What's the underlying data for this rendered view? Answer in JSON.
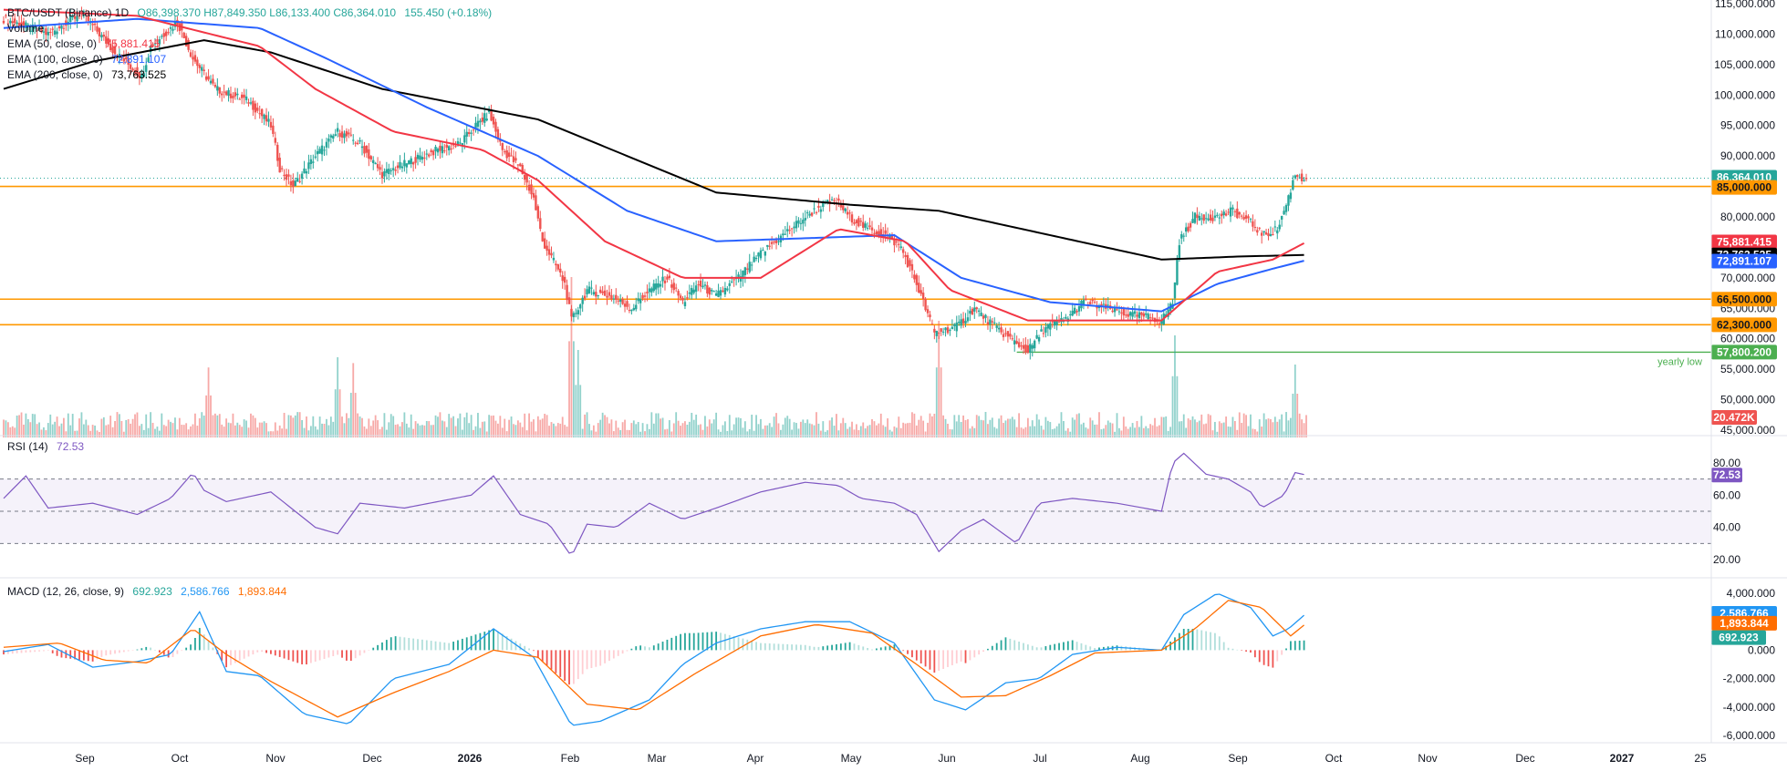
{
  "header": {
    "symbol_line": "BTC/USDT (Binance) 1D",
    "ohlc_text": "O86,398.370 H87,849.350 L86,133.400 C86,364.010",
    "change_text": "155.450 (+0.18%)",
    "volume_label": "Volume",
    "ema50_label": "EMA (50, close, 0)",
    "ema50_value": "75,881.415",
    "ema100_label": "EMA (100, close, 0)",
    "ema100_value": "72,891.107",
    "ema200_label": "EMA (200, close, 0)",
    "ema200_value": "73,763.525"
  },
  "rsi_pane": {
    "label": "RSI (14)",
    "value": "72.53"
  },
  "macd_pane": {
    "label": "MACD (12, 26, close, 9)",
    "histogram": "692.923",
    "macd": "2,586.766",
    "signal": "1,893.844"
  },
  "colors": {
    "up": "#26a69a",
    "down": "#ef5350",
    "ema50": "#f23645",
    "ema100": "#2962ff",
    "ema200": "#000000",
    "level": "#ff9800",
    "yearly_low": "#4caf50",
    "rsi": "#7e57c2",
    "macd": "#2196f3",
    "signal": "#ff6d00"
  },
  "chart_data": [
    {
      "type": "candlestick",
      "title": "BTC/USDT (Binance) 1D",
      "x_ticks": [
        "Sep",
        "Oct",
        "Nov",
        "Dec",
        "2026",
        "Feb",
        "Mar",
        "Apr",
        "May",
        "Jun",
        "Jul",
        "Aug",
        "Sep",
        "Oct",
        "Nov",
        "Dec",
        "2027",
        "25"
      ],
      "y_ticks": [
        "115,000.000",
        "110,000.000",
        "105,000.000",
        "100,000.000",
        "95,000.000",
        "90,000.000",
        "85,000.000",
        "80,000.000",
        "75,000.000",
        "70,000.000",
        "65,000.000",
        "60,000.000",
        "55,000.000",
        "50,000.000",
        "45,000.000"
      ],
      "ylim": [
        45000,
        115000
      ],
      "last_price": 86364.01,
      "last_price_label": "86,364.010",
      "path_points": [
        [
          0,
          112500
        ],
        [
          20,
          110000
        ],
        [
          35,
          113500
        ],
        [
          50,
          107000
        ],
        [
          62,
          103000
        ],
        [
          66,
          108000
        ],
        [
          78,
          112000
        ],
        [
          85,
          106000
        ],
        [
          95,
          101000
        ],
        [
          110,
          99000
        ],
        [
          120,
          95000
        ],
        [
          124,
          88000
        ],
        [
          130,
          85000
        ],
        [
          140,
          90000
        ],
        [
          150,
          94000
        ],
        [
          160,
          92000
        ],
        [
          170,
          87000
        ],
        [
          182,
          89000
        ],
        [
          195,
          91000
        ],
        [
          205,
          92000
        ],
        [
          212,
          95000
        ],
        [
          218,
          97000
        ],
        [
          224,
          91000
        ],
        [
          232,
          88000
        ],
        [
          238,
          83000
        ],
        [
          242,
          76000
        ],
        [
          248,
          72000
        ],
        [
          252,
          69000
        ],
        [
          255,
          63000
        ],
        [
          262,
          68000
        ],
        [
          272,
          67000
        ],
        [
          282,
          65000
        ],
        [
          290,
          68000
        ],
        [
          298,
          70000
        ],
        [
          305,
          66000
        ],
        [
          312,
          69000
        ],
        [
          320,
          67000
        ],
        [
          330,
          70000
        ],
        [
          340,
          74000
        ],
        [
          350,
          77000
        ],
        [
          360,
          80000
        ],
        [
          368,
          82000
        ],
        [
          374,
          82500
        ],
        [
          380,
          80000
        ],
        [
          388,
          78000
        ],
        [
          396,
          77000
        ],
        [
          403,
          75000
        ],
        [
          410,
          69000
        ],
        [
          418,
          61000
        ],
        [
          428,
          62000
        ],
        [
          436,
          65000
        ],
        [
          445,
          62000
        ],
        [
          452,
          60000
        ],
        [
          460,
          58000
        ],
        [
          468,
          62000
        ],
        [
          476,
          63000
        ],
        [
          485,
          66000
        ],
        [
          495,
          65000
        ],
        [
          505,
          64000
        ],
        [
          515,
          63500
        ],
        [
          520,
          63000
        ],
        [
          525,
          66000
        ],
        [
          528,
          76000
        ],
        [
          535,
          80000
        ],
        [
          545,
          80000
        ],
        [
          552,
          81000
        ],
        [
          560,
          79000
        ],
        [
          566,
          77000
        ],
        [
          572,
          78000
        ],
        [
          576,
          82000
        ],
        [
          580,
          87000
        ],
        [
          583,
          86364
        ]
      ],
      "ema50_points": [
        [
          0,
          114000
        ],
        [
          60,
          113000
        ],
        [
          115,
          108000
        ],
        [
          140,
          101000
        ],
        [
          175,
          94000
        ],
        [
          215,
          91000
        ],
        [
          240,
          86000
        ],
        [
          270,
          76000
        ],
        [
          305,
          70000
        ],
        [
          340,
          70000
        ],
        [
          375,
          78000
        ],
        [
          405,
          76000
        ],
        [
          425,
          68000
        ],
        [
          460,
          63000
        ],
        [
          520,
          63000
        ],
        [
          545,
          71000
        ],
        [
          570,
          73000
        ],
        [
          585,
          75881
        ]
      ],
      "ema100_points": [
        [
          0,
          111000
        ],
        [
          60,
          112500
        ],
        [
          115,
          111000
        ],
        [
          145,
          106000
        ],
        [
          190,
          98000
        ],
        [
          240,
          90000
        ],
        [
          280,
          81000
        ],
        [
          320,
          76000
        ],
        [
          360,
          76500
        ],
        [
          400,
          77000
        ],
        [
          430,
          70000
        ],
        [
          470,
          66000
        ],
        [
          520,
          64500
        ],
        [
          545,
          69000
        ],
        [
          570,
          71500
        ],
        [
          585,
          72891
        ]
      ],
      "ema200_points": [
        [
          0,
          101000
        ],
        [
          40,
          105500
        ],
        [
          90,
          109000
        ],
        [
          120,
          107000
        ],
        [
          170,
          101000
        ],
        [
          240,
          96000
        ],
        [
          320,
          84000
        ],
        [
          380,
          82000
        ],
        [
          420,
          81000
        ],
        [
          470,
          77000
        ],
        [
          520,
          73000
        ],
        [
          555,
          73500
        ],
        [
          585,
          73763
        ]
      ],
      "levels": [
        {
          "price": 85000,
          "label": "85,000.000"
        },
        {
          "price": 66500,
          "label": "66,500.000"
        },
        {
          "price": 62300,
          "label": "62,300.000"
        }
      ],
      "yearly_low": {
        "price": 57800.2,
        "label": "57,800.200",
        "text": "yearly low",
        "from_day": 455
      },
      "volume_label": "20.472K",
      "volume_spikes": [
        [
          92,
          4.8
        ],
        [
          150,
          5.5
        ],
        [
          157,
          5.1
        ],
        [
          255,
          11
        ],
        [
          258,
          6
        ],
        [
          420,
          8
        ],
        [
          526,
          7
        ],
        [
          580,
          5
        ]
      ]
    },
    {
      "type": "line",
      "title": "RSI (14)",
      "y_ticks": [
        "80.00",
        "60.00",
        "40.00",
        "20.00"
      ],
      "ylim": [
        10,
        90
      ],
      "bands": [
        70,
        50,
        30
      ],
      "value_label": "72.53",
      "points": [
        [
          0,
          58
        ],
        [
          10,
          72
        ],
        [
          20,
          52
        ],
        [
          40,
          55
        ],
        [
          60,
          48
        ],
        [
          75,
          58
        ],
        [
          85,
          74
        ],
        [
          90,
          63
        ],
        [
          100,
          56
        ],
        [
          120,
          62
        ],
        [
          140,
          40
        ],
        [
          150,
          36
        ],
        [
          160,
          55
        ],
        [
          180,
          52
        ],
        [
          210,
          60
        ],
        [
          220,
          72
        ],
        [
          232,
          48
        ],
        [
          245,
          42
        ],
        [
          255,
          22
        ],
        [
          262,
          42
        ],
        [
          275,
          40
        ],
        [
          290,
          55
        ],
        [
          305,
          45
        ],
        [
          320,
          52
        ],
        [
          340,
          62
        ],
        [
          360,
          68
        ],
        [
          375,
          66
        ],
        [
          385,
          58
        ],
        [
          400,
          55
        ],
        [
          410,
          48
        ],
        [
          420,
          25
        ],
        [
          430,
          38
        ],
        [
          440,
          45
        ],
        [
          455,
          30
        ],
        [
          465,
          55
        ],
        [
          480,
          58
        ],
        [
          500,
          55
        ],
        [
          520,
          50
        ],
        [
          525,
          80
        ],
        [
          530,
          86
        ],
        [
          540,
          73
        ],
        [
          550,
          70
        ],
        [
          560,
          62
        ],
        [
          565,
          52
        ],
        [
          575,
          60
        ],
        [
          580,
          74
        ],
        [
          585,
          72.53
        ]
      ]
    },
    {
      "type": "line",
      "title": "MACD (12, 26, close, 9)",
      "y_ticks": [
        "4,000.000",
        "2,000.000",
        "0.000",
        "-2,000.000",
        "-4,000.000",
        "-6,000.000"
      ],
      "ylim": [
        -6500,
        4500
      ],
      "macd_points": [
        [
          0,
          -100
        ],
        [
          20,
          400
        ],
        [
          40,
          -1200
        ],
        [
          60,
          -800
        ],
        [
          75,
          -300
        ],
        [
          88,
          2700
        ],
        [
          100,
          -1500
        ],
        [
          115,
          -1800
        ],
        [
          135,
          -4500
        ],
        [
          155,
          -5200
        ],
        [
          175,
          -2000
        ],
        [
          200,
          -1000
        ],
        [
          220,
          1500
        ],
        [
          238,
          -500
        ],
        [
          255,
          -5300
        ],
        [
          268,
          -5000
        ],
        [
          290,
          -3500
        ],
        [
          305,
          -1000
        ],
        [
          320,
          500
        ],
        [
          340,
          1500
        ],
        [
          360,
          2000
        ],
        [
          380,
          2000
        ],
        [
          400,
          500
        ],
        [
          418,
          -3500
        ],
        [
          432,
          -4200
        ],
        [
          450,
          -2300
        ],
        [
          465,
          -2000
        ],
        [
          480,
          -300
        ],
        [
          500,
          200
        ],
        [
          520,
          0
        ],
        [
          530,
          2500
        ],
        [
          545,
          4000
        ],
        [
          560,
          3000
        ],
        [
          570,
          1000
        ],
        [
          577,
          1500
        ],
        [
          585,
          2586.766
        ]
      ],
      "signal_points": [
        [
          0,
          200
        ],
        [
          25,
          500
        ],
        [
          45,
          -700
        ],
        [
          65,
          -900
        ],
        [
          85,
          1500
        ],
        [
          100,
          -300
        ],
        [
          120,
          -2200
        ],
        [
          150,
          -4700
        ],
        [
          175,
          -3000
        ],
        [
          200,
          -1500
        ],
        [
          220,
          0
        ],
        [
          240,
          -500
        ],
        [
          262,
          -3800
        ],
        [
          285,
          -4200
        ],
        [
          310,
          -1700
        ],
        [
          340,
          1000
        ],
        [
          365,
          1800
        ],
        [
          390,
          1200
        ],
        [
          410,
          -1000
        ],
        [
          430,
          -3300
        ],
        [
          450,
          -3200
        ],
        [
          470,
          -1800
        ],
        [
          490,
          -200
        ],
        [
          520,
          0
        ],
        [
          535,
          1500
        ],
        [
          550,
          3500
        ],
        [
          565,
          3000
        ],
        [
          578,
          1000
        ],
        [
          585,
          1893.844
        ]
      ],
      "macd_label": "2,586.766",
      "signal_label": "1,893.844",
      "histogram_label": "692.923"
    }
  ]
}
